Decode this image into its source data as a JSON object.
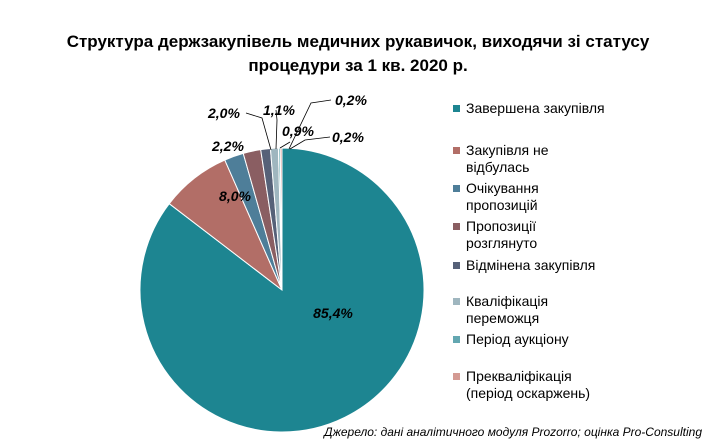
{
  "chart_data": {
    "type": "pie",
    "title": "Структура держзакупівель медичних рукавичок, виходячи зі статусу процедури за 1 кв. 2020 р.",
    "title_lines": [
      "Структура держзакупівель медичних рукавичок, виходячи зі статусу",
      "процедури за 1 кв. 2020 р."
    ],
    "legend_position": "right",
    "slices": [
      {
        "name": "Завершена закупівля",
        "value": 85.4,
        "label": "85,4%",
        "color": "#1d8591"
      },
      {
        "name": "Закупівля не відбулась",
        "value": 8.0,
        "label": "8,0%",
        "color": "#b26e67"
      },
      {
        "name": "Очікування пропозицій",
        "value": 2.2,
        "label": "2,2%",
        "color": "#4e7e99"
      },
      {
        "name": "Пропозиції розглянуто",
        "value": 2.0,
        "label": "2,0%",
        "color": "#8a5e62"
      },
      {
        "name": "Відмінена закупівля",
        "value": 1.1,
        "label": "1,1%",
        "color": "#566178"
      },
      {
        "name": "Кваліфікація переможця",
        "value": 0.9,
        "label": "0,9%",
        "color": "#9fb6bf"
      },
      {
        "name": "Період аукціону",
        "value": 0.2,
        "label": "0,2%",
        "color": "#63a7b1"
      },
      {
        "name": "Прекваліфікація (період оскаржень)",
        "value": 0.2,
        "label": "0,2%",
        "color": "#d49a93"
      }
    ]
  },
  "legend": {
    "items": [
      {
        "lines": [
          "Завершена закупівля"
        ]
      },
      {
        "lines": [
          "Закупівля не",
          "відбулась"
        ]
      },
      {
        "lines": [
          "Очікування",
          "пропозицій"
        ]
      },
      {
        "lines": [
          "Пропозиції",
          "розглянуто"
        ]
      },
      {
        "lines": [
          "Відмінена закупівля"
        ]
      },
      {
        "lines": [
          "Кваліфікація",
          "переможця"
        ]
      },
      {
        "lines": [
          "Період аукціону"
        ]
      },
      {
        "lines": [
          "Прекваліфікація",
          "(період оскаржень)"
        ]
      }
    ]
  },
  "source": "Джерело: дані аналітичного модуля Prozorro; оцінка Pro-Consulting"
}
